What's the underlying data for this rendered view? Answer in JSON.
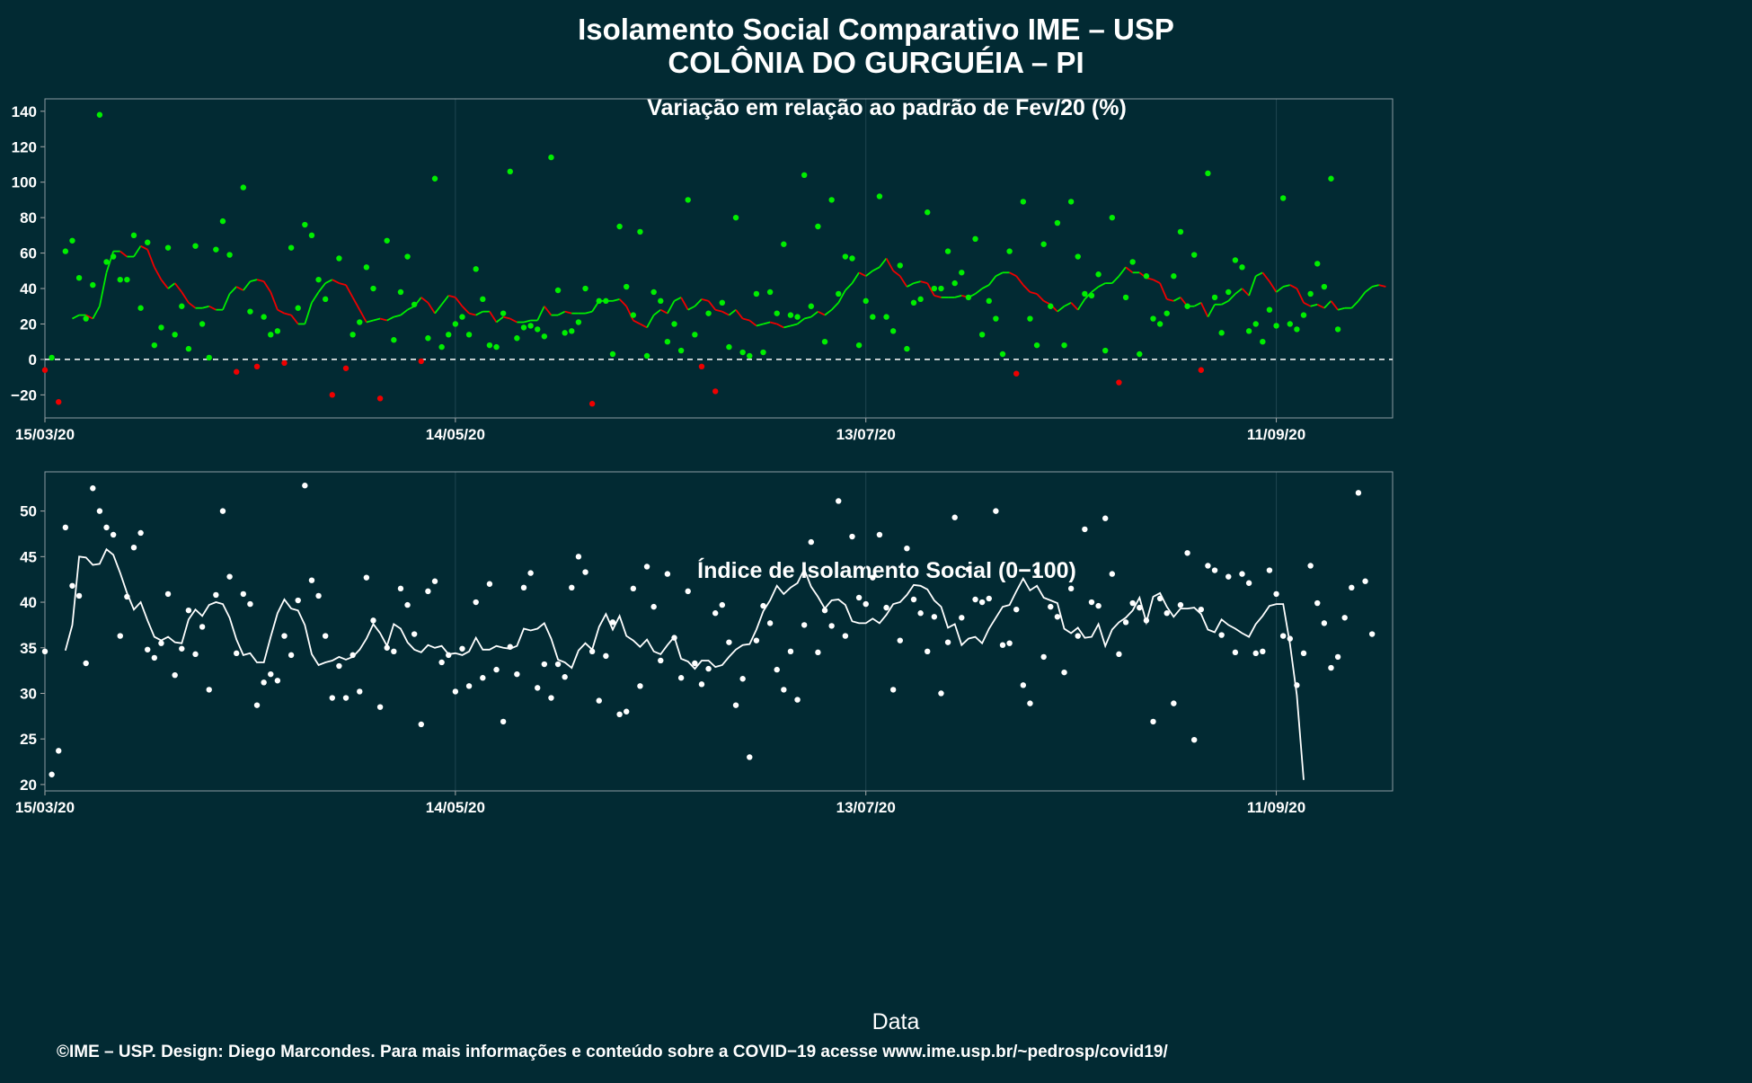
{
  "header": {
    "title_line1": "Isolamento Social Comparativo IME – USP",
    "title_line2": "COLÔNIA DO GURGUÉIA – PI"
  },
  "footer": {
    "xlabel": "Data",
    "credit": "©IME – USP. Design: Diego Marcondes. Para mais informações e conteúdo sobre a COVID−19 acesse www.ime.usp.br/~pedrosp/covid19/"
  },
  "colors": {
    "background": "#022a33",
    "positive": "#00ee00",
    "negative": "#ee0000",
    "index": "#ffffff"
  },
  "chart_data": [
    {
      "type": "scatter",
      "title": "Variação em relação ao padrão de Fev/20 (%)",
      "xlabel": "",
      "ylabel": "",
      "start_date": "2020-03-15",
      "x_ticks": [
        "15/03/20",
        "14/05/20",
        "13/07/20",
        "11/09/20"
      ],
      "y_ticks": [
        -20,
        0,
        20,
        40,
        60,
        80,
        100,
        120,
        140
      ],
      "xlim": [
        "2020-03-15",
        "2020-09-28"
      ],
      "ylim": [
        -33,
        147
      ],
      "grid": true,
      "reference_line": 0,
      "series": [
        {
          "values": [
            -6,
            1,
            -24,
            61,
            67,
            46,
            23,
            42,
            138,
            55,
            58,
            45,
            45,
            70,
            29,
            66,
            8,
            18,
            63,
            14,
            30,
            6,
            64,
            20,
            1,
            62,
            78,
            59,
            -7,
            97,
            27,
            -4,
            24,
            14,
            16,
            -2,
            63,
            29,
            76,
            70,
            45,
            34,
            -20,
            57,
            -5,
            14,
            21,
            52,
            40,
            -22,
            67,
            11,
            38,
            58,
            31,
            -1,
            12,
            102,
            7,
            14,
            20,
            24,
            14,
            51,
            34,
            8,
            7,
            26,
            106,
            12,
            18,
            19,
            17,
            13,
            114,
            39,
            15,
            16,
            21,
            40,
            -25,
            33,
            33,
            3,
            75,
            41,
            25,
            72,
            2,
            38,
            33,
            10,
            20,
            5,
            90,
            14,
            -4,
            26,
            -18,
            32,
            7,
            80,
            4,
            2,
            37,
            4,
            38,
            26,
            65,
            25,
            24,
            104,
            30,
            75,
            10,
            90,
            37,
            58,
            57,
            8,
            33,
            24,
            92,
            24,
            16,
            53,
            6,
            32,
            34,
            83,
            40,
            40,
            61,
            43,
            49,
            35,
            68,
            14,
            33,
            23,
            3,
            61,
            -8,
            89,
            23,
            8,
            65,
            30,
            77,
            8,
            89,
            58,
            37,
            36,
            48,
            5,
            80,
            -13,
            35,
            55,
            3,
            47,
            23,
            20,
            26,
            47,
            72,
            30,
            59,
            -6,
            105,
            35,
            15,
            38,
            56,
            52,
            16,
            20,
            10,
            28,
            19,
            91,
            20,
            17,
            25,
            37,
            54,
            41,
            102,
            17
          ]
        },
        {
          "values": [
            23,
            25,
            25,
            23,
            30,
            49,
            61,
            61,
            58,
            58,
            64,
            62,
            52,
            45,
            40,
            43,
            38,
            32,
            29,
            29,
            30,
            28,
            28,
            37,
            41,
            39,
            44,
            45,
            44,
            38,
            28,
            26,
            25,
            20,
            20,
            32,
            38,
            43,
            45,
            43,
            42,
            35,
            28,
            21,
            22,
            23,
            22,
            24,
            25,
            28,
            30,
            35,
            32,
            26,
            31,
            36,
            35,
            30,
            26,
            25,
            27,
            27,
            21,
            24,
            23,
            21,
            21,
            22,
            22,
            30,
            25,
            25,
            27,
            26,
            26,
            26,
            27,
            33,
            33,
            33,
            34,
            30,
            22,
            20,
            18,
            25,
            28,
            26,
            33,
            35,
            28,
            30,
            34,
            33,
            28,
            27,
            25,
            28,
            23,
            22,
            19,
            20,
            21,
            20,
            18,
            19,
            20,
            23,
            24,
            27,
            25,
            28,
            32,
            39,
            43,
            49,
            47,
            50,
            52,
            57,
            50,
            47,
            41,
            43,
            44,
            43,
            36,
            35,
            35,
            35,
            36,
            35,
            37,
            40,
            42,
            47,
            49,
            49,
            47,
            42,
            38,
            37,
            33,
            31,
            27,
            30,
            32,
            28,
            34,
            38,
            41,
            43,
            43,
            47,
            52,
            49,
            49,
            46,
            45,
            43,
            34,
            33,
            35,
            30,
            30,
            32,
            24,
            31,
            31,
            33,
            37,
            40,
            36,
            47,
            49,
            44,
            38,
            41,
            42,
            40,
            32,
            30,
            31,
            29,
            33,
            28,
            29,
            29,
            33,
            38,
            41,
            42,
            41
          ]
        }
      ]
    },
    {
      "type": "scatter",
      "title": "Índice de Isolamento Social (0−100)",
      "xlabel": "Data",
      "ylabel": "",
      "start_date": "2020-03-15",
      "x_ticks": [
        "15/03/20",
        "14/05/20",
        "13/07/20",
        "11/09/20"
      ],
      "y_ticks": [
        20,
        25,
        30,
        35,
        40,
        45,
        50
      ],
      "xlim": [
        "2020-03-15",
        "2020-09-28"
      ],
      "ylim": [
        19.3,
        54.3
      ],
      "grid": true,
      "series": [
        {
          "values": [
            34.6,
            21.1,
            23.7,
            48.2,
            41.8,
            40.7,
            33.3,
            52.5,
            50.0,
            48.2,
            47.4,
            36.3,
            40.6,
            46.0,
            47.6,
            34.8,
            33.9,
            35.5,
            40.9,
            32.0,
            34.9,
            39.1,
            34.3,
            37.3,
            30.4,
            40.8,
            50.0,
            42.8,
            34.4,
            40.9,
            39.8,
            28.7,
            31.2,
            32.1,
            31.4,
            36.3,
            34.2,
            40.2,
            52.8,
            42.4,
            40.7,
            36.3,
            29.5,
            33.0,
            29.5,
            34.2,
            30.2,
            42.7,
            38.0,
            28.5,
            35.0,
            34.6,
            41.5,
            39.7,
            36.5,
            26.6,
            41.2,
            42.3,
            33.4,
            34.2,
            30.2,
            34.9,
            30.8,
            40.0,
            31.7,
            42.0,
            32.6,
            26.9,
            35.1,
            32.1,
            41.6,
            43.2,
            30.6,
            33.2,
            29.5,
            33.2,
            31.8,
            41.6,
            45.0,
            43.3,
            34.6,
            29.2,
            34.1,
            37.8,
            27.7,
            28.0,
            41.5,
            30.8,
            43.9,
            39.5,
            33.6,
            43.1,
            36.1,
            31.7,
            41.2,
            33.3,
            31.0,
            32.7,
            38.8,
            39.7,
            35.6,
            28.7,
            31.6,
            23.0,
            35.8,
            39.6,
            37.7,
            32.6,
            30.4,
            34.6,
            29.3,
            37.5,
            46.6,
            34.5,
            39.1,
            37.4,
            51.1,
            36.3,
            47.2,
            40.5,
            39.8,
            42.7,
            47.4,
            39.4,
            30.4,
            35.8,
            45.9,
            40.3,
            38.8,
            34.6,
            38.4,
            30.0,
            35.6,
            49.3,
            38.3,
            43.6,
            40.3,
            40.0,
            40.4,
            50.0,
            35.3,
            35.5,
            39.2,
            30.9,
            28.9,
            43.4,
            34.0,
            39.5,
            38.4,
            32.3,
            41.5,
            36.3,
            48.0,
            40.0,
            39.6,
            49.2,
            43.1,
            34.3,
            37.8,
            39.9,
            39.4,
            38.0,
            26.9,
            40.4,
            38.8,
            28.9,
            39.7,
            45.4,
            24.9,
            39.2,
            44.0,
            43.5,
            36.4,
            42.8,
            34.5,
            43.1,
            42.1,
            34.4,
            34.6,
            43.5,
            40.9,
            36.3,
            36.0,
            30.9,
            34.4,
            44.0,
            39.9,
            37.7,
            32.8,
            34.0,
            38.3,
            41.6,
            52.0,
            42.3,
            36.5
          ]
        },
        {
          "values": [
            34.7,
            37.5,
            45.0,
            44.9,
            44.1,
            44.2,
            45.8,
            45.2,
            43.2,
            41.0,
            39.2,
            40.0,
            38.0,
            36.2,
            35.8,
            36.2,
            35.6,
            35.5,
            38.1,
            39.2,
            38.5,
            39.7,
            40.0,
            39.8,
            38.3,
            35.9,
            34.2,
            34.4,
            33.4,
            33.4,
            36.2,
            38.8,
            40.3,
            39.3,
            39.1,
            37.5,
            34.3,
            33.1,
            33.4,
            33.6,
            34.0,
            33.7,
            34.0,
            34.8,
            36.0,
            37.6,
            36.6,
            35.2,
            37.6,
            37.1,
            35.6,
            34.8,
            34.5,
            35.3,
            35.0,
            35.2,
            34.3,
            34.4,
            34.2,
            34.6,
            36.1,
            34.8,
            34.8,
            35.2,
            35.0,
            34.9,
            35.2,
            37.1,
            36.9,
            37.1,
            37.7,
            36.0,
            33.7,
            33.4,
            32.8,
            34.7,
            35.5,
            34.8,
            37.3,
            38.7,
            37.0,
            38.5,
            36.3,
            35.8,
            35.1,
            35.9,
            34.6,
            34.3,
            35.3,
            36.2,
            33.8,
            33.5,
            32.7,
            33.6,
            33.6,
            32.9,
            33.1,
            34.0,
            34.8,
            35.3,
            35.4,
            37.0,
            39.0,
            40.2,
            41.8,
            40.9,
            41.6,
            42.1,
            43.6,
            41.7,
            40.6,
            39.3,
            40.2,
            40.3,
            39.7,
            37.9,
            37.7,
            37.7,
            38.2,
            37.7,
            38.6,
            39.8,
            40.0,
            40.8,
            41.9,
            41.8,
            41.4,
            40.2,
            39.5,
            37.2,
            37.6,
            35.3,
            36.0,
            36.2,
            35.5,
            37.1,
            38.3,
            39.5,
            39.7,
            41.2,
            42.6,
            41.3,
            41.8,
            40.5,
            40.2,
            39.9,
            37.1,
            36.6,
            37.2,
            36.1,
            36.2,
            37.6,
            35.2,
            37.0,
            37.8,
            38.3,
            39.1,
            40.5,
            37.8,
            40.6,
            41.0,
            39.5,
            38.4,
            39.3,
            39.3,
            39.4,
            38.7,
            37.0,
            36.7,
            38.1,
            37.5,
            37.1,
            36.6,
            36.2,
            37.6,
            38.5,
            39.6,
            39.8,
            39.8,
            35.4,
            29.8,
            20.5
          ]
        }
      ]
    }
  ]
}
